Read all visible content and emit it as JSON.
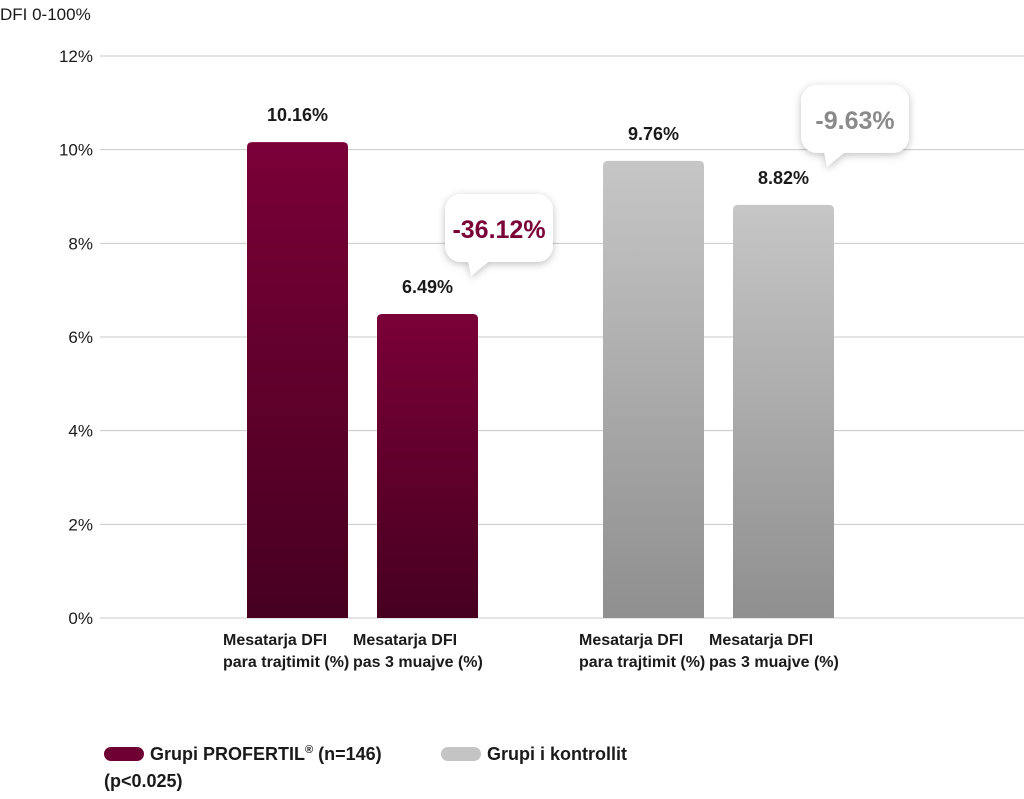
{
  "chart_data": {
    "type": "bar",
    "ylabel": "DFI 0-100%",
    "ylim": [
      0,
      12
    ],
    "yticks": [
      0,
      2,
      4,
      6,
      8,
      10,
      12
    ],
    "ytick_suffix": "%",
    "grid": true,
    "groups": [
      {
        "series": "Grupi PROFERTIL® (n=146)",
        "color_top": "#7a0038",
        "color_bottom": "#47001f",
        "bars": [
          {
            "category": [
              "Mesatarja DFI",
              "para trajtimit (%)"
            ],
            "value": 10.16,
            "label": "10.16%"
          },
          {
            "category": [
              "Mesatarja DFI",
              "pas 3 muajve (%)"
            ],
            "value": 6.49,
            "label": "6.49%"
          }
        ],
        "change": {
          "label": "-36.12%",
          "color": "#7a0038"
        }
      },
      {
        "series": "Grupi i kontrollit",
        "color_top": "#c6c6c6",
        "color_bottom": "#8f8f8f",
        "bars": [
          {
            "category": [
              "Mesatarja DFI",
              "para trajtimit (%)"
            ],
            "value": 9.76,
            "label": "9.76%"
          },
          {
            "category": [
              "Mesatarja DFI",
              "pas 3 muajve (%)"
            ],
            "value": 8.82,
            "label": "8.82%"
          }
        ],
        "change": {
          "label": "-9.63%",
          "color": "#8a8a8a"
        }
      }
    ]
  },
  "legend": {
    "profertil_name": "Grupi PROFERTIL",
    "profertil_reg": "®",
    "profertil_n": " (n=146)",
    "profertil_color": "#6e0033",
    "control_label": "Grupi i kontrollit",
    "control_color": "#c4c4c4",
    "pvalue": "(p<0.025)"
  }
}
